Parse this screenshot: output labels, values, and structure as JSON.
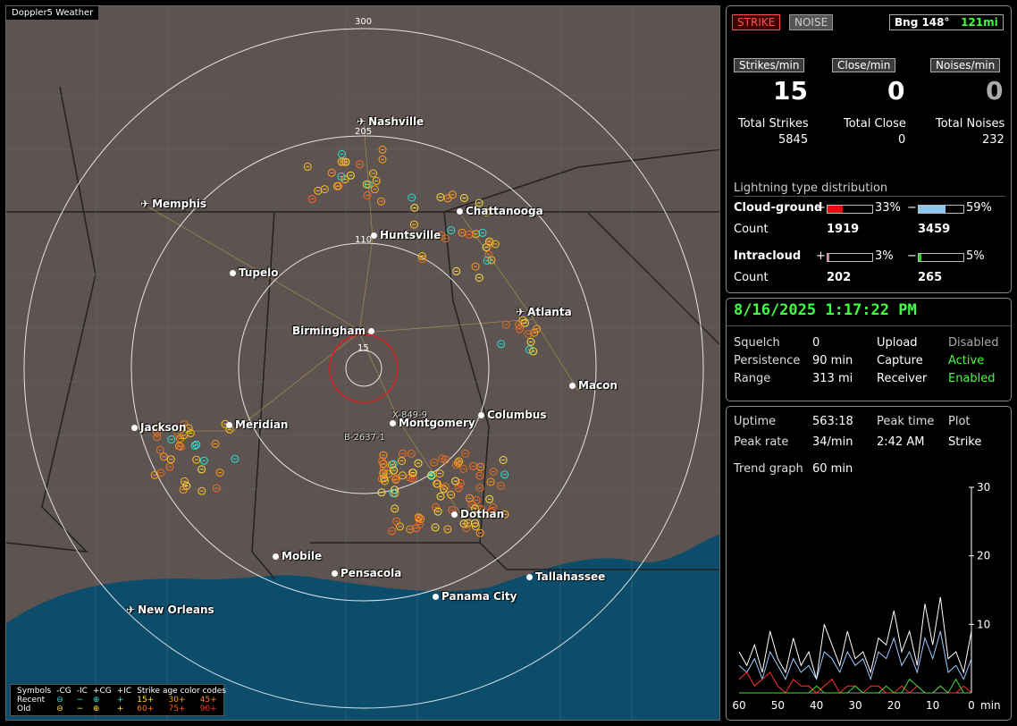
{
  "app_title": "Doppler5 Weather",
  "map": {
    "range_labels": [
      "300",
      "205",
      "110",
      "15"
    ],
    "cities": [
      {
        "name": "Nashville",
        "type": "airport"
      },
      {
        "name": "Memphis",
        "type": "airport"
      },
      {
        "name": "Chattanooga",
        "type": "city"
      },
      {
        "name": "Huntsville",
        "type": "city"
      },
      {
        "name": "Tupelo",
        "type": "city"
      },
      {
        "name": "Atlanta",
        "type": "airport"
      },
      {
        "name": "Birmingham",
        "type": "city"
      },
      {
        "name": "Macon",
        "type": "city"
      },
      {
        "name": "Jackson",
        "type": "city"
      },
      {
        "name": "Meridian",
        "type": "city"
      },
      {
        "name": "Montgomery",
        "type": "city"
      },
      {
        "name": "Columbus",
        "type": "city"
      },
      {
        "name": "Dothan",
        "type": "city"
      },
      {
        "name": "Mobile",
        "type": "city"
      },
      {
        "name": "Pensacola",
        "type": "city"
      },
      {
        "name": "Tallahassee",
        "type": "city"
      },
      {
        "name": "Panama City",
        "type": "city"
      },
      {
        "name": "New Orleans",
        "type": "airport"
      }
    ],
    "markers": [
      "X-849-9",
      "B-2637-1"
    ]
  },
  "legend": {
    "header": [
      "Symbols",
      "-CG",
      "-IC",
      "+CG",
      "+IC",
      "Strike age color codes"
    ],
    "recent_label": "Recent",
    "old_label": "Old",
    "recent_ages": [
      "15+",
      "30+",
      "45+"
    ],
    "old_ages": [
      "60+",
      "75+",
      "90+"
    ]
  },
  "top_panel": {
    "strike_btn": "STRIKE",
    "noise_btn": "NOISE",
    "bearing": "Bng 148°",
    "distance": "121mi",
    "headers": [
      "Strikes/min",
      "Close/min",
      "Noises/min"
    ],
    "values": [
      "15",
      "0",
      "0"
    ],
    "totals_labels": [
      "Total Strikes",
      "Total Close",
      "Total Noises"
    ],
    "totals_values": [
      "5845",
      "0",
      "232"
    ],
    "dist_title": "Lightning type distribution",
    "cg_label": "Cloud-ground",
    "cg_pos_pct": "33%",
    "cg_neg_pct": "59%",
    "cg_pos_frac": 0.33,
    "cg_neg_frac": 0.59,
    "count_label": "Count",
    "cg_pos_count": "1919",
    "cg_neg_count": "3459",
    "ic_label": "Intracloud",
    "ic_pos_pct": "3%",
    "ic_neg_pct": "5%",
    "ic_pos_frac": 0.03,
    "ic_neg_frac": 0.05,
    "ic_pos_count": "202",
    "ic_neg_count": "265",
    "plus": "+",
    "minus": "−"
  },
  "mid_panel": {
    "datetime": "8/16/2025 1:17:22 PM",
    "rows": [
      {
        "k1": "Squelch",
        "v1": "0",
        "k2": "Upload",
        "v2": "Disabled"
      },
      {
        "k1": "Persistence",
        "v1": "90 min",
        "k2": "Capture",
        "v2": "Active"
      },
      {
        "k1": "Range",
        "v1": "313 mi",
        "k2": "Receiver",
        "v2": "Enabled"
      }
    ]
  },
  "bottom_panel": {
    "uptime_label": "Uptime",
    "uptime": "563:18",
    "peak_time_label": "Peak time",
    "peak_time": "2:42 AM",
    "plot_label": "Plot",
    "plot_value": "Strike",
    "peak_rate_label": "Peak rate",
    "peak_rate": "34/min",
    "trend_label": "Trend graph",
    "trend_value": "60 min"
  },
  "chart_data": {
    "type": "line",
    "x": [
      60,
      58,
      56,
      54,
      52,
      50,
      48,
      46,
      44,
      42,
      40,
      38,
      36,
      34,
      32,
      30,
      28,
      26,
      24,
      22,
      20,
      18,
      16,
      14,
      12,
      10,
      8,
      6,
      4,
      2,
      0
    ],
    "x_ticks": [
      "60",
      "50",
      "40",
      "30",
      "20",
      "10",
      "0"
    ],
    "x_unit": "min",
    "y_ticks": [
      "30",
      "20",
      "10"
    ],
    "ylim": [
      0,
      30
    ],
    "series": [
      {
        "color": "#ffffff",
        "values": [
          6,
          4,
          7,
          3,
          9,
          5,
          3,
          8,
          4,
          6,
          2,
          10,
          7,
          4,
          9,
          5,
          6,
          3,
          8,
          7,
          12,
          6,
          9,
          4,
          13,
          7,
          14,
          5,
          6,
          3,
          9
        ]
      },
      {
        "color": "#9ecbff",
        "values": [
          4,
          3,
          5,
          2,
          6,
          4,
          2,
          5,
          3,
          4,
          2,
          6,
          5,
          3,
          6,
          4,
          5,
          2,
          6,
          5,
          8,
          4,
          6,
          3,
          8,
          5,
          9,
          3,
          4,
          2,
          5
        ]
      },
      {
        "color": "#ff3030",
        "values": [
          2,
          3,
          1,
          2,
          3,
          1,
          0,
          2,
          1,
          1,
          0,
          1,
          2,
          0,
          1,
          1,
          0,
          1,
          1,
          0,
          0,
          1,
          0,
          1,
          0,
          0,
          1,
          0,
          0,
          1,
          0
        ]
      },
      {
        "color": "#40dd40",
        "values": [
          0,
          0,
          0,
          0,
          0,
          0,
          0,
          0,
          0,
          0,
          1,
          0,
          0,
          0,
          0,
          1,
          0,
          0,
          0,
          1,
          0,
          0,
          2,
          1,
          0,
          0,
          1,
          0,
          2,
          0,
          0
        ]
      }
    ]
  }
}
